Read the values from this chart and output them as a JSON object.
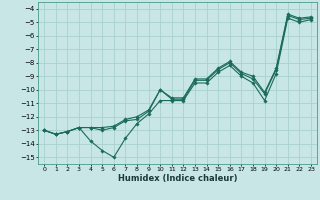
{
  "xlabel": "Humidex (Indice chaleur)",
  "ylabel": "",
  "bg_color": "#c8e6e6",
  "grid_color": "#a8d0d0",
  "line_color": "#1a6b5a",
  "xlim": [
    -0.5,
    23.5
  ],
  "ylim": [
    -15.5,
    -3.5
  ],
  "yticks": [
    -4,
    -5,
    -6,
    -7,
    -8,
    -9,
    -10,
    -11,
    -12,
    -13,
    -14,
    -15
  ],
  "xticks": [
    0,
    1,
    2,
    3,
    4,
    5,
    6,
    7,
    8,
    9,
    10,
    11,
    12,
    13,
    14,
    15,
    16,
    17,
    18,
    19,
    20,
    21,
    22,
    23
  ],
  "line1_x": [
    0,
    1,
    2,
    3,
    4,
    5,
    6,
    7,
    8,
    9,
    10,
    11,
    12,
    13,
    14,
    15,
    16,
    17,
    18,
    19,
    20,
    21,
    22,
    23
  ],
  "line1_y": [
    -13.0,
    -13.3,
    -13.1,
    -12.8,
    -12.8,
    -13.0,
    -12.8,
    -12.3,
    -12.2,
    -11.6,
    -10.0,
    -10.7,
    -10.7,
    -9.3,
    -9.3,
    -8.5,
    -8.0,
    -8.8,
    -9.2,
    -10.3,
    -8.5,
    -4.5,
    -4.8,
    -4.7
  ],
  "line2_x": [
    0,
    1,
    2,
    3,
    4,
    5,
    6,
    7,
    8,
    9,
    10,
    11,
    12,
    13,
    14,
    15,
    16,
    17,
    18,
    19,
    20,
    21,
    22,
    23
  ],
  "line2_y": [
    -13.0,
    -13.3,
    -13.1,
    -12.8,
    -13.8,
    -14.5,
    -15.0,
    -13.6,
    -12.5,
    -11.8,
    -10.8,
    -10.8,
    -10.8,
    -9.5,
    -9.5,
    -8.7,
    -8.2,
    -9.0,
    -9.5,
    -10.8,
    -8.8,
    -4.7,
    -5.0,
    -4.8
  ],
  "line3_x": [
    0,
    1,
    2,
    3,
    4,
    5,
    6,
    7,
    8,
    9,
    10,
    11,
    12,
    13,
    14,
    15,
    16,
    17,
    18,
    19,
    20,
    21,
    22,
    23
  ],
  "line3_y": [
    -13.0,
    -13.3,
    -13.1,
    -12.8,
    -12.8,
    -12.8,
    -12.7,
    -12.2,
    -12.0,
    -11.5,
    -10.0,
    -10.6,
    -10.6,
    -9.2,
    -9.2,
    -8.4,
    -7.9,
    -8.7,
    -9.0,
    -10.2,
    -8.4,
    -4.4,
    -4.7,
    -4.6
  ]
}
